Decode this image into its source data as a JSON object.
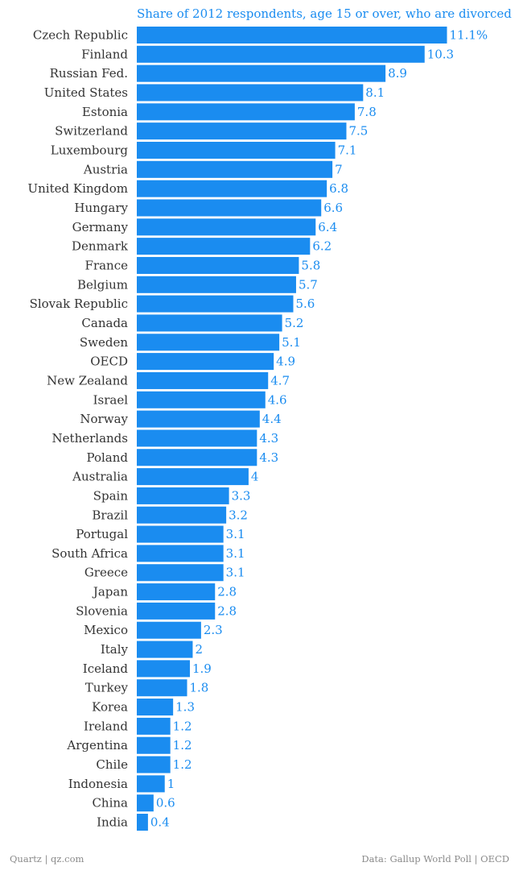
{
  "chart_data": {
    "type": "bar",
    "orientation": "horizontal",
    "title": "Share of 2012 respondents, age 15 or over, who are divorced",
    "categories": [
      "Czech Republic",
      "Finland",
      "Russian Fed.",
      "United States",
      "Estonia",
      "Switzerland",
      "Luxembourg",
      "Austria",
      "United Kingdom",
      "Hungary",
      "Germany",
      "Denmark",
      "France",
      "Belgium",
      "Slovak Republic",
      "Canada",
      "Sweden",
      "OECD",
      "New Zealand",
      "Israel",
      "Norway",
      "Netherlands",
      "Poland",
      "Australia",
      "Spain",
      "Brazil",
      "Portugal",
      "South Africa",
      "Greece",
      "Japan",
      "Slovenia",
      "Mexico",
      "Italy",
      "Iceland",
      "Turkey",
      "Korea",
      "Ireland",
      "Argentina",
      "Chile",
      "Indonesia",
      "China",
      "India"
    ],
    "values": [
      11.1,
      10.3,
      8.9,
      8.1,
      7.8,
      7.5,
      7.1,
      7,
      6.8,
      6.6,
      6.4,
      6.2,
      5.8,
      5.7,
      5.6,
      5.2,
      5.1,
      4.9,
      4.7,
      4.6,
      4.4,
      4.3,
      4.3,
      4,
      3.3,
      3.2,
      3.1,
      3.1,
      3.1,
      2.8,
      2.8,
      2.3,
      2,
      1.9,
      1.8,
      1.3,
      1.2,
      1.2,
      1.2,
      1,
      0.6,
      0.4
    ],
    "value_labels": [
      "11.1%",
      "10.3",
      "8.9",
      "8.1",
      "7.8",
      "7.5",
      "7.1",
      "7",
      "6.8",
      "6.6",
      "6.4",
      "6.2",
      "5.8",
      "5.7",
      "5.6",
      "5.2",
      "5.1",
      "4.9",
      "4.7",
      "4.6",
      "4.4",
      "4.3",
      "4.3",
      "4",
      "3.3",
      "3.2",
      "3.1",
      "3.1",
      "3.1",
      "2.8",
      "2.8",
      "2.3",
      "2",
      "1.9",
      "1.8",
      "1.3",
      "1.2",
      "1.2",
      "1.2",
      "1",
      "0.6",
      "0.4"
    ],
    "xlim": [
      0,
      11.1
    ],
    "grid": false,
    "legend": "none",
    "bar_color": "#1a8cf0"
  },
  "footer": {
    "left": "Quartz | qz.com",
    "right": "Data: Gallup World Poll | OECD"
  }
}
